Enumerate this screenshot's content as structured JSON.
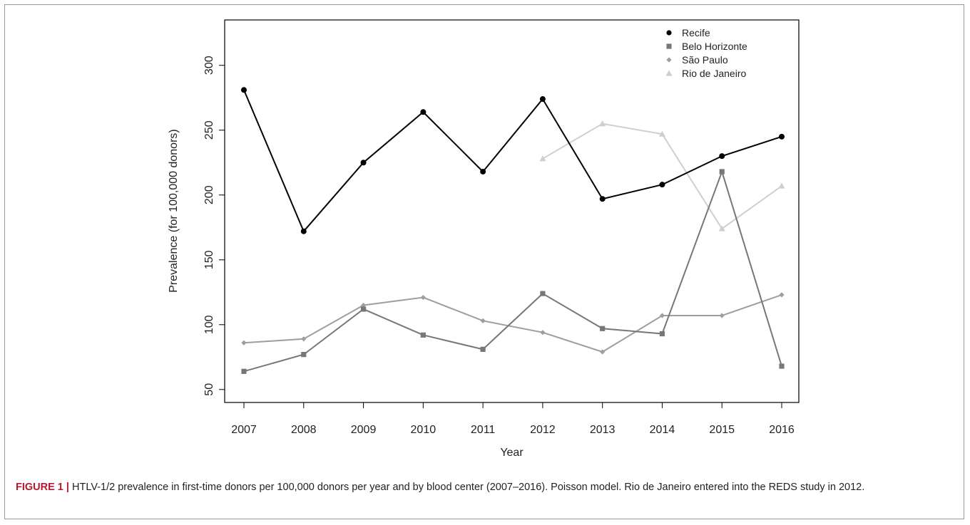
{
  "chart_data": {
    "type": "line",
    "x": [
      2007,
      2008,
      2009,
      2010,
      2011,
      2012,
      2013,
      2014,
      2015,
      2016
    ],
    "xlabel": "Year",
    "ylabel": "Prevalence (for 100,000 donors)",
    "ylim": [
      40,
      335
    ],
    "yticks": [
      50,
      100,
      150,
      200,
      250,
      300
    ],
    "grid": false,
    "legend_position": "top-right",
    "series": [
      {
        "name": "Recife",
        "marker": "circle",
        "color": "#000000",
        "values": [
          281,
          172,
          225,
          264,
          218,
          274,
          197,
          208,
          230,
          245
        ]
      },
      {
        "name": "Belo Horizonte",
        "marker": "square",
        "color": "#777777",
        "values": [
          64,
          77,
          112,
          92,
          81,
          124,
          97,
          93,
          218,
          68
        ]
      },
      {
        "name": "São Paulo",
        "marker": "diamond",
        "color": "#9e9e9e",
        "values": [
          86,
          89,
          115,
          121,
          103,
          94,
          79,
          107,
          107,
          123
        ]
      },
      {
        "name": "Rio de Janeiro",
        "marker": "triangle",
        "color": "#cfcfcf",
        "values": [
          null,
          null,
          null,
          null,
          null,
          228,
          255,
          247,
          174,
          207
        ]
      }
    ]
  },
  "caption": {
    "lead": "FIGURE 1 |",
    "text": " HTLV-1/2 prevalence in first-time donors per 100,000 donors per year and by blood center (2007–2016). Poisson model. Rio de Janeiro entered into the REDS study in 2012."
  }
}
